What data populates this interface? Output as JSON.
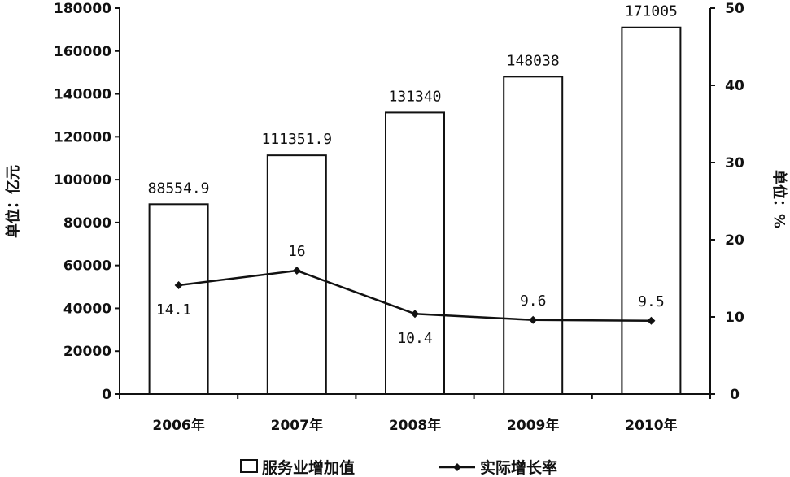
{
  "chart_data": {
    "type": "bar",
    "categories": [
      "2006年",
      "2007年",
      "2008年",
      "2009年",
      "2010年"
    ],
    "series": [
      {
        "name": "服务业增加值",
        "type": "bar",
        "axis": "left",
        "values": [
          88554.9,
          111351.9,
          131340,
          148038,
          171005
        ],
        "labels": [
          "88554.9",
          "111351.9",
          "131340",
          "148038",
          "171005"
        ]
      },
      {
        "name": "实际增长率",
        "type": "line",
        "axis": "right",
        "values": [
          14.1,
          16,
          10.4,
          9.6,
          9.5
        ],
        "labels": [
          "14.1",
          "16",
          "10.4",
          "9.6",
          "9.5"
        ]
      }
    ],
    "ylabel": "单位：亿元",
    "ylabel_right": "单位：%",
    "ylim": [
      0,
      180000
    ],
    "ylim_right": [
      0,
      50
    ],
    "yticks": [
      "0",
      "20000",
      "40000",
      "60000",
      "80000",
      "100000",
      "120000",
      "140000",
      "160000",
      "180000"
    ],
    "yticks_right": [
      "0",
      "10",
      "20",
      "30",
      "40",
      "50"
    ],
    "grid": false,
    "legend_position": "bottom",
    "colors": {
      "bar_fill": "#ffffff",
      "bar_stroke": "#111111",
      "line": "#111111"
    }
  }
}
